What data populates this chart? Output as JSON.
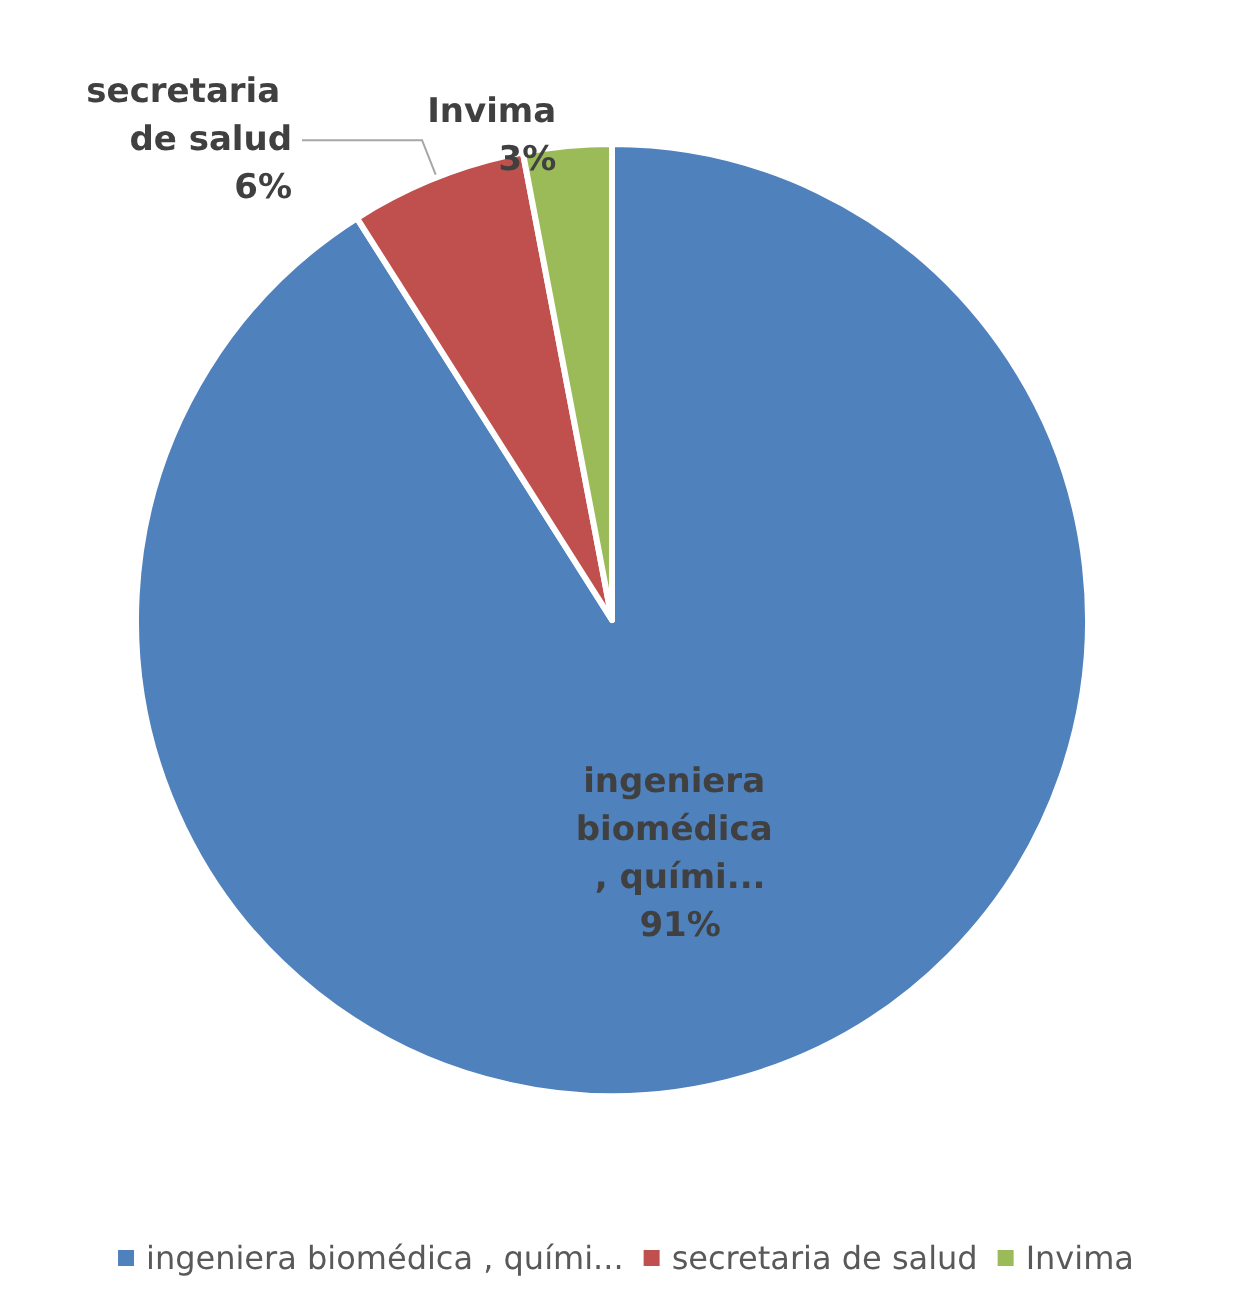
{
  "chart_data": {
    "type": "pie",
    "categories": [
      "ingeniera biomédica , quími...",
      "secretaria de salud",
      "Invima"
    ],
    "values": [
      91,
      6,
      3
    ],
    "colors": [
      "#4f81bd",
      "#c0504d",
      "#9bbb59"
    ],
    "value_labels": [
      "91%",
      "6%",
      "3%"
    ],
    "legend": "bottom"
  }
}
